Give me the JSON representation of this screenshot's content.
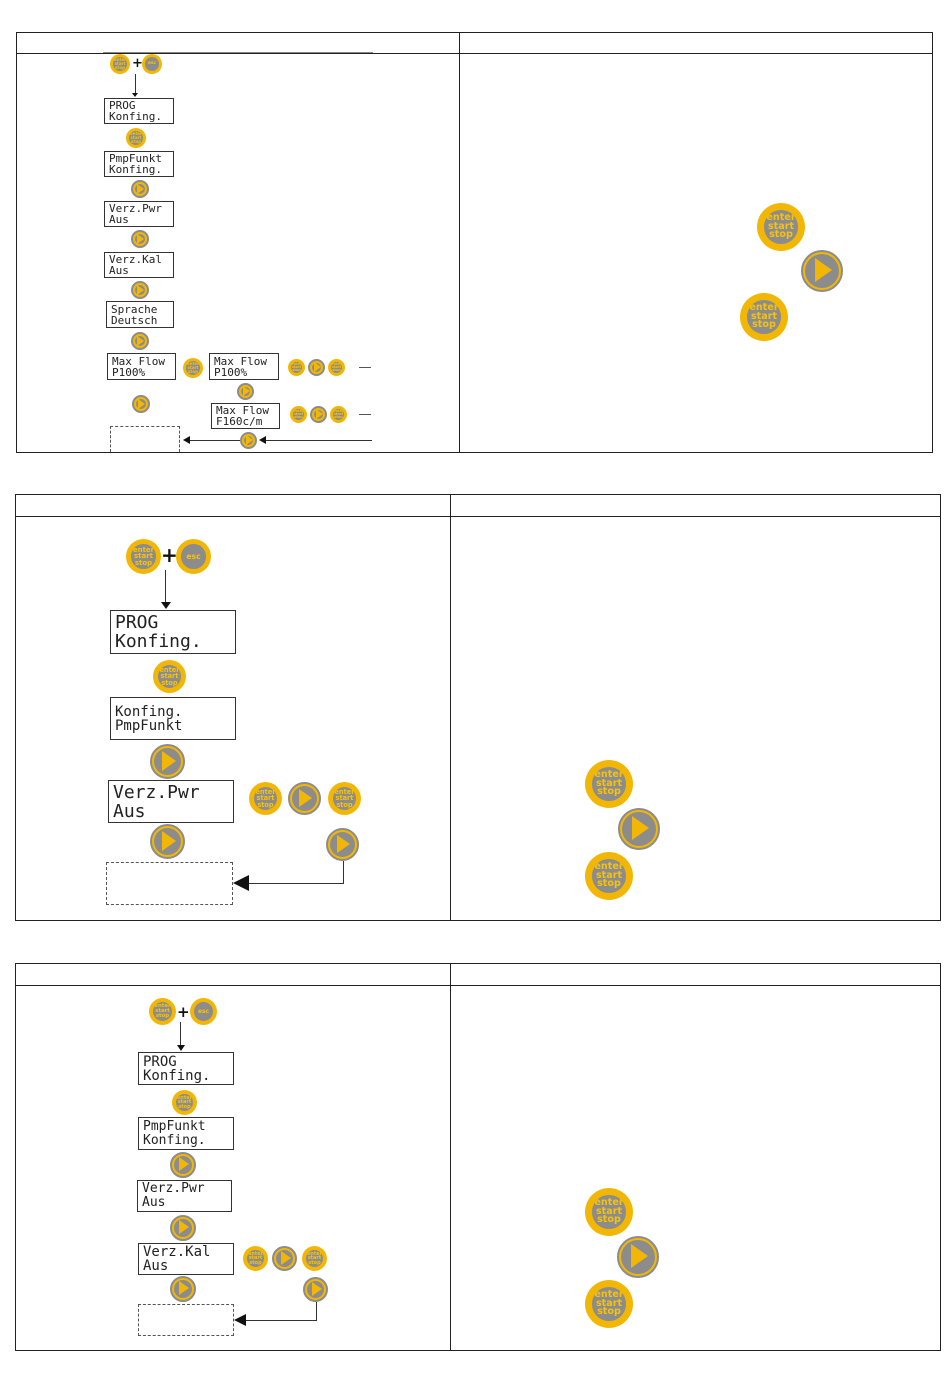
{
  "section1": {
    "lcd_prog": [
      "PROG",
      "Konfing."
    ],
    "lcd_pmpfunkt": [
      "PmpFunkt",
      "Konfing."
    ],
    "lcd_verzpwr": [
      "Verz.Pwr",
      "Aus"
    ],
    "lcd_verzkal": [
      "Verz.Kal",
      "Aus"
    ],
    "lcd_sprache": [
      "Sprache",
      "Deutsch"
    ],
    "lcd_maxflow_a": [
      "Max Flow",
      "P100%"
    ],
    "lcd_maxflow_b": [
      "Max Flow",
      "P100%"
    ],
    "lcd_maxflow_c": [
      "Max Flow",
      "F160c/m"
    ]
  },
  "section2": {
    "lcd_prog": [
      "PROG",
      "Konfing."
    ],
    "lcd_konfing": [
      "Konfing.",
      "PmpFunkt"
    ],
    "lcd_verzpwr": [
      "Verz.Pwr",
      "Aus"
    ]
  },
  "section3": {
    "lcd_prog": [
      "PROG",
      "Konfing."
    ],
    "lcd_pmpfunkt": [
      "PmpFunkt",
      "Konfing."
    ],
    "lcd_verzpwr": [
      "Verz.Pwr",
      "Aus"
    ],
    "lcd_verzkal": [
      "Verz.Kal",
      "Aus"
    ]
  },
  "buttons": {
    "enter": [
      "enter",
      "start",
      "stop"
    ],
    "esc": "esc"
  },
  "colors": {
    "button_ring": "#f2b705",
    "button_core": "#8c8c8c",
    "button_text": "#f7c20c"
  }
}
